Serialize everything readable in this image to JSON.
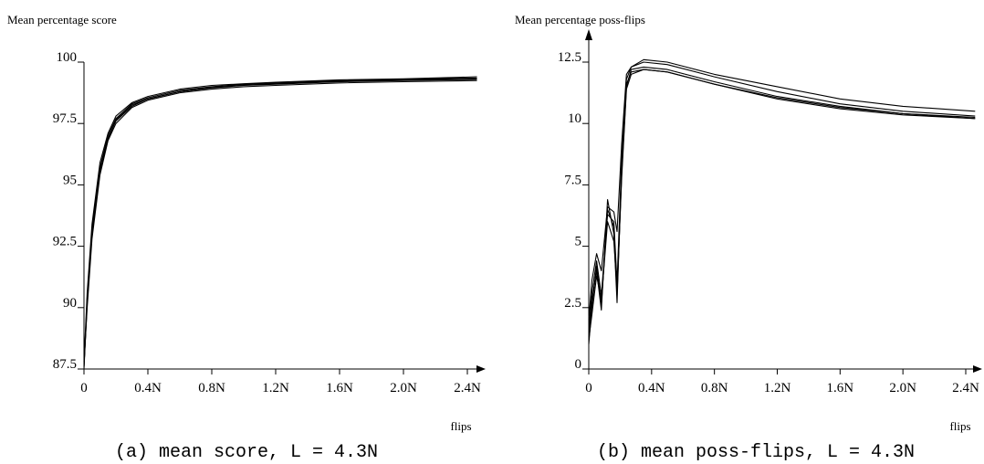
{
  "chart_data": [
    {
      "type": "line",
      "ylabel": "Mean percentage  score",
      "xlabel": "flips",
      "caption": "(a) mean score, L = 4.3N",
      "x_ticks": [
        "0",
        "0.4N",
        "0.8N",
        "1.2N",
        "1.6N",
        "2.0N",
        "2.4N"
      ],
      "x_tick_values": [
        0,
        0.4,
        0.8,
        1.2,
        1.6,
        2.0,
        2.4
      ],
      "y_ticks": [
        "87.5",
        "90",
        "92.5",
        "95",
        "97.5",
        "100"
      ],
      "y_tick_values": [
        87.5,
        90,
        92.5,
        95,
        97.5,
        100
      ],
      "xlim": [
        0,
        2.5
      ],
      "ylim": [
        87.5,
        100
      ],
      "grid": false,
      "series": [
        {
          "values": [
            [
              0,
              87.5
            ],
            [
              0.02,
              90.2
            ],
            [
              0.05,
              93.0
            ],
            [
              0.1,
              95.6
            ],
            [
              0.15,
              96.9
            ],
            [
              0.2,
              97.6
            ],
            [
              0.3,
              98.2
            ],
            [
              0.4,
              98.5
            ],
            [
              0.6,
              98.8
            ],
            [
              0.8,
              98.95
            ],
            [
              1.0,
              99.05
            ],
            [
              1.2,
              99.1
            ],
            [
              1.6,
              99.2
            ],
            [
              2.0,
              99.25
            ],
            [
              2.46,
              99.3
            ]
          ]
        },
        {
          "values": [
            [
              0,
              87.6
            ],
            [
              0.02,
              90.4
            ],
            [
              0.05,
              93.2
            ],
            [
              0.1,
              95.7
            ],
            [
              0.15,
              97.0
            ],
            [
              0.2,
              97.7
            ],
            [
              0.3,
              98.3
            ],
            [
              0.4,
              98.55
            ],
            [
              0.6,
              98.85
            ],
            [
              0.8,
              99.0
            ],
            [
              1.0,
              99.1
            ],
            [
              1.2,
              99.15
            ],
            [
              1.6,
              99.25
            ],
            [
              2.0,
              99.3
            ],
            [
              2.46,
              99.35
            ]
          ]
        },
        {
          "values": [
            [
              0,
              87.7
            ],
            [
              0.02,
              90.0
            ],
            [
              0.05,
              92.8
            ],
            [
              0.1,
              95.4
            ],
            [
              0.15,
              96.8
            ],
            [
              0.2,
              97.5
            ],
            [
              0.3,
              98.15
            ],
            [
              0.4,
              98.45
            ],
            [
              0.6,
              98.75
            ],
            [
              0.8,
              98.9
            ],
            [
              1.0,
              99.0
            ],
            [
              1.2,
              99.05
            ],
            [
              1.6,
              99.15
            ],
            [
              2.0,
              99.2
            ],
            [
              2.46,
              99.25
            ]
          ]
        },
        {
          "values": [
            [
              0,
              87.8
            ],
            [
              0.02,
              90.6
            ],
            [
              0.05,
              93.4
            ],
            [
              0.1,
              95.9
            ],
            [
              0.15,
              97.1
            ],
            [
              0.2,
              97.8
            ],
            [
              0.3,
              98.35
            ],
            [
              0.4,
              98.6
            ],
            [
              0.6,
              98.9
            ],
            [
              0.8,
              99.05
            ],
            [
              1.0,
              99.12
            ],
            [
              1.2,
              99.18
            ],
            [
              1.6,
              99.28
            ],
            [
              2.0,
              99.32
            ],
            [
              2.46,
              99.4
            ]
          ]
        },
        {
          "values": [
            [
              0,
              87.6
            ],
            [
              0.02,
              90.3
            ],
            [
              0.05,
              93.1
            ],
            [
              0.1,
              95.5
            ],
            [
              0.15,
              96.85
            ],
            [
              0.2,
              97.65
            ],
            [
              0.3,
              98.25
            ],
            [
              0.4,
              98.5
            ],
            [
              0.6,
              98.8
            ],
            [
              0.8,
              98.97
            ],
            [
              1.0,
              99.07
            ],
            [
              1.2,
              99.12
            ],
            [
              1.6,
              99.22
            ],
            [
              2.0,
              99.28
            ],
            [
              2.46,
              99.32
            ]
          ]
        }
      ]
    },
    {
      "type": "line",
      "ylabel": "Mean percentage poss-flips",
      "xlabel": "flips",
      "caption": "(b) mean poss-flips, L = 4.3N",
      "x_ticks": [
        "0",
        "0.4N",
        "0.8N",
        "1.2N",
        "1.6N",
        "2.0N",
        "2.4N"
      ],
      "x_tick_values": [
        0,
        0.4,
        0.8,
        1.2,
        1.6,
        2.0,
        2.4
      ],
      "y_ticks": [
        "0",
        "2.5",
        "5",
        "7.5",
        "10",
        "12.5"
      ],
      "y_tick_values": [
        0,
        2.5,
        5,
        7.5,
        10,
        12.5
      ],
      "xlim": [
        0,
        2.5
      ],
      "ylim": [
        0,
        13.5
      ],
      "grid": false,
      "series": [
        {
          "values": [
            [
              0,
              1.0
            ],
            [
              0.02,
              2.5
            ],
            [
              0.05,
              4.2
            ],
            [
              0.08,
              2.6
            ],
            [
              0.12,
              6.5
            ],
            [
              0.16,
              5.8
            ],
            [
              0.18,
              3.0
            ],
            [
              0.21,
              8.0
            ],
            [
              0.24,
              11.5
            ],
            [
              0.27,
              12.2
            ],
            [
              0.35,
              12.3
            ],
            [
              0.5,
              12.2
            ],
            [
              0.8,
              11.7
            ],
            [
              1.2,
              11.1
            ],
            [
              1.6,
              10.7
            ],
            [
              2.0,
              10.4
            ],
            [
              2.46,
              10.2
            ]
          ]
        },
        {
          "values": [
            [
              0,
              1.3
            ],
            [
              0.02,
              2.8
            ],
            [
              0.05,
              4.0
            ],
            [
              0.08,
              2.4
            ],
            [
              0.12,
              6.9
            ],
            [
              0.16,
              5.5
            ],
            [
              0.18,
              2.7
            ],
            [
              0.21,
              8.3
            ],
            [
              0.24,
              11.8
            ],
            [
              0.27,
              12.3
            ],
            [
              0.35,
              12.5
            ],
            [
              0.5,
              12.4
            ],
            [
              0.8,
              11.9
            ],
            [
              1.2,
              11.3
            ],
            [
              1.6,
              10.8
            ],
            [
              2.0,
              10.5
            ],
            [
              2.46,
              10.3
            ]
          ]
        },
        {
          "values": [
            [
              0,
              1.6
            ],
            [
              0.02,
              3.1
            ],
            [
              0.05,
              4.4
            ],
            [
              0.08,
              3.0
            ],
            [
              0.12,
              6.3
            ],
            [
              0.16,
              6.0
            ],
            [
              0.18,
              3.5
            ],
            [
              0.21,
              8.6
            ],
            [
              0.24,
              11.6
            ],
            [
              0.27,
              12.1
            ],
            [
              0.35,
              12.2
            ],
            [
              0.5,
              12.1
            ],
            [
              0.8,
              11.6
            ],
            [
              1.2,
              11.0
            ],
            [
              1.6,
              10.6
            ],
            [
              2.0,
              10.35
            ],
            [
              2.46,
              10.2
            ]
          ]
        },
        {
          "values": [
            [
              0,
              2.0
            ],
            [
              0.02,
              3.6
            ],
            [
              0.05,
              4.7
            ],
            [
              0.08,
              4.0
            ],
            [
              0.12,
              6.6
            ],
            [
              0.16,
              6.4
            ],
            [
              0.18,
              5.6
            ],
            [
              0.21,
              9.2
            ],
            [
              0.24,
              12.0
            ],
            [
              0.27,
              12.3
            ],
            [
              0.35,
              12.6
            ],
            [
              0.5,
              12.5
            ],
            [
              0.8,
              12.0
            ],
            [
              1.2,
              11.5
            ],
            [
              1.6,
              11.0
            ],
            [
              2.0,
              10.7
            ],
            [
              2.46,
              10.5
            ]
          ]
        },
        {
          "values": [
            [
              0,
              1.2
            ],
            [
              0.02,
              2.2
            ],
            [
              0.05,
              3.8
            ],
            [
              0.08,
              2.8
            ],
            [
              0.12,
              6.0
            ],
            [
              0.16,
              5.2
            ],
            [
              0.18,
              3.2
            ],
            [
              0.21,
              7.8
            ],
            [
              0.24,
              11.4
            ],
            [
              0.27,
              12.0
            ],
            [
              0.35,
              12.2
            ],
            [
              0.5,
              12.1
            ],
            [
              0.8,
              11.6
            ],
            [
              1.2,
              11.05
            ],
            [
              1.6,
              10.65
            ],
            [
              2.0,
              10.4
            ],
            [
              2.46,
              10.25
            ]
          ]
        }
      ]
    }
  ]
}
